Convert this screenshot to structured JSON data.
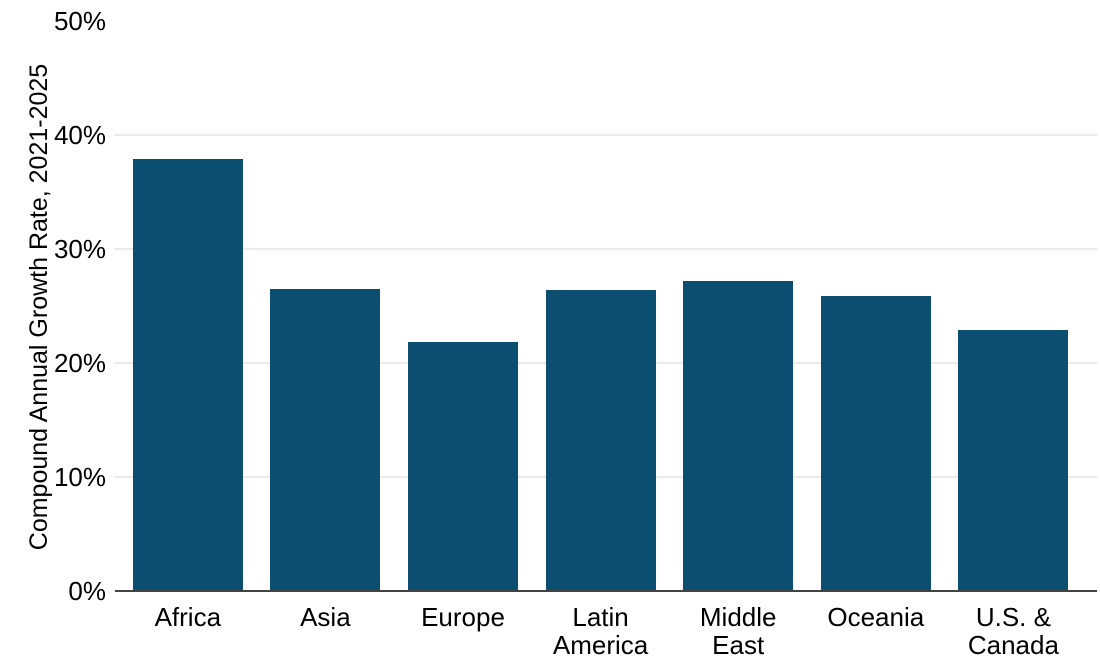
{
  "chart_data": {
    "type": "bar",
    "categories": [
      "Africa",
      "Asia",
      "Europe",
      "Latin America",
      "Middle East",
      "Oceania",
      "U.S. & Canada"
    ],
    "values": [
      37.9,
      26.5,
      21.8,
      26.4,
      27.2,
      25.9,
      22.9
    ],
    "category_label_lines": [
      [
        "Africa"
      ],
      [
        "Asia"
      ],
      [
        "Europe"
      ],
      [
        "Latin",
        "America"
      ],
      [
        "Middle",
        "East"
      ],
      [
        "Oceania"
      ],
      [
        "U.S. &",
        "Canada"
      ]
    ],
    "title": "",
    "xlabel": "",
    "ylabel": "Compound Annual Growth Rate, 2021-2025",
    "ylim": [
      0,
      50
    ],
    "yticks": [
      0,
      10,
      20,
      30,
      40,
      50
    ],
    "ytick_labels": [
      "0%",
      "10%",
      "20%",
      "30%",
      "40%",
      "50%"
    ],
    "grid": "horizontal",
    "legend": "none",
    "colors": {
      "bar": "#0B4E6F",
      "gridline": "#EAEAEA",
      "baseline": "#434343",
      "text": "#000000",
      "background": "#FFFFFF"
    }
  }
}
